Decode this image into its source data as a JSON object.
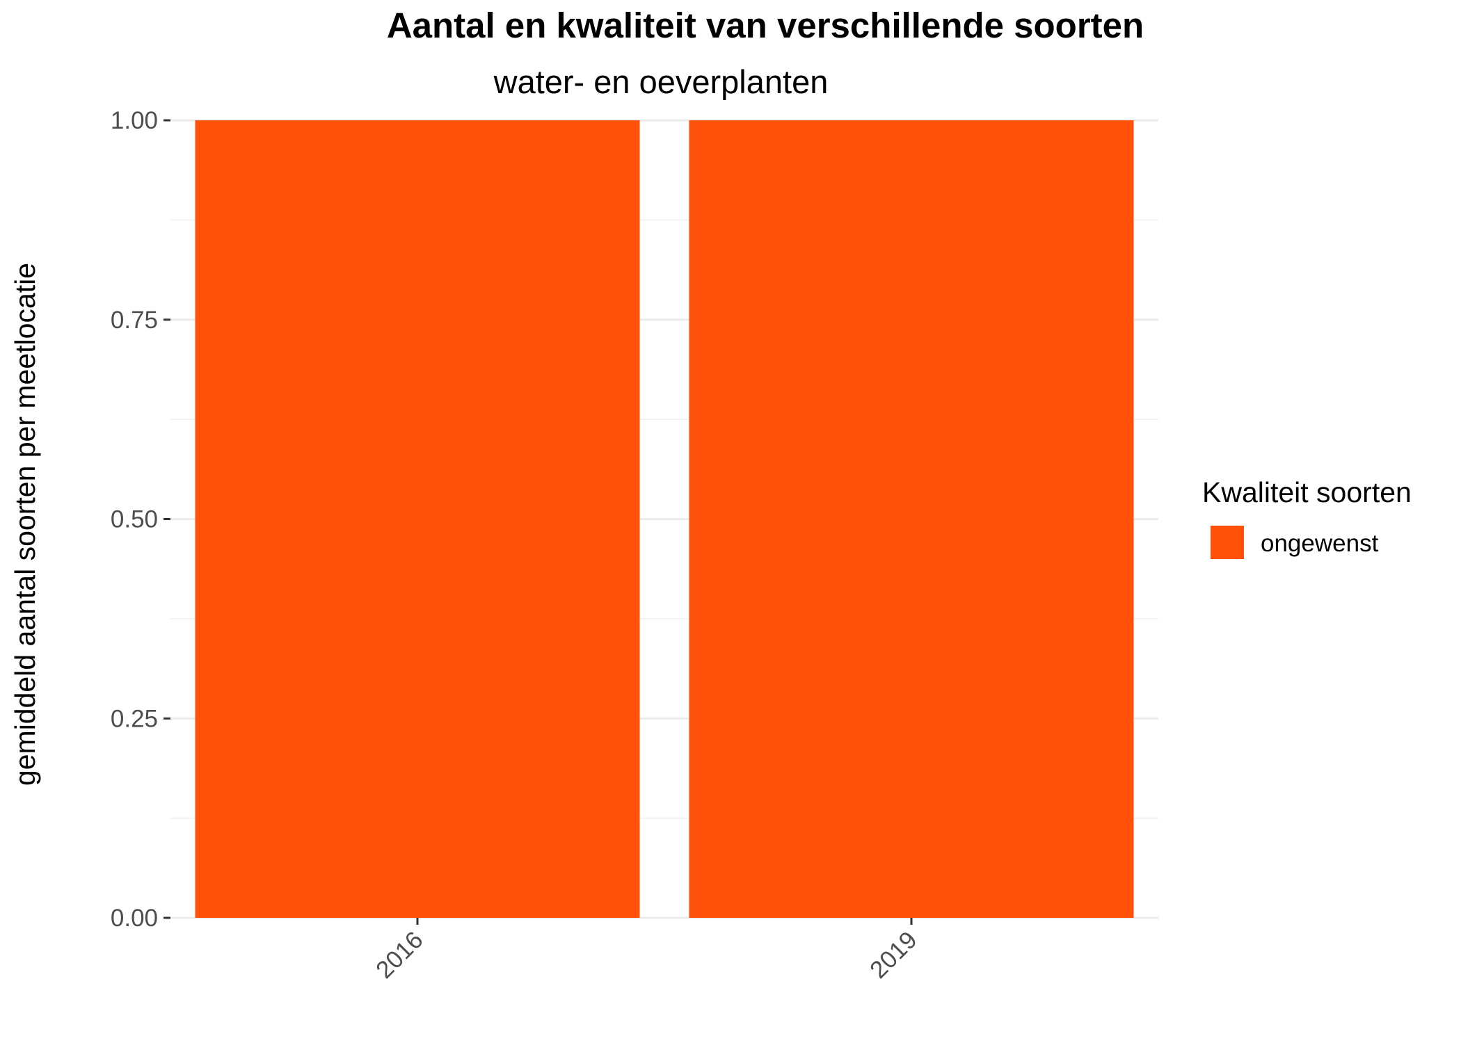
{
  "chart_data": {
    "type": "bar",
    "title": "Aantal en kwaliteit van verschillende soorten",
    "subtitle": "water- en oeverplanten",
    "xlabel": "",
    "ylabel": "gemiddeld aantal soorten per meetlocatie",
    "categories": [
      "2016",
      "2019"
    ],
    "series": [
      {
        "name": "ongewenst",
        "color": "#FF510A",
        "values": [
          1.0,
          1.0
        ]
      }
    ],
    "ylim": [
      0,
      1
    ],
    "y_ticks": [
      0,
      0.25,
      0.5,
      0.75,
      1.0
    ],
    "y_tick_labels": [
      "0.00",
      "0.25",
      "0.50",
      "0.75",
      "1.00"
    ],
    "x_tick_rotation_deg": 45,
    "grid": true,
    "legend": {
      "title": "Kwaliteit soorten",
      "placement": "right",
      "entries": [
        "ongewenst"
      ]
    }
  }
}
